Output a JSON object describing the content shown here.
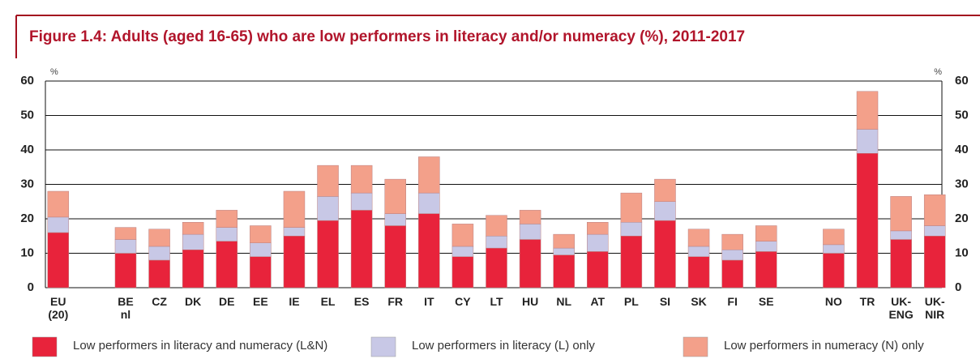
{
  "chart_data": {
    "type": "stacked_bar",
    "title": "Figure 1.4: Adults (aged 16-65) who are low performers in literacy and/or numeracy (%), 2011-2017",
    "y_label": "%",
    "y2_label": "%",
    "categories": [
      "EU (20)",
      null,
      "BE nl",
      "CZ",
      "DK",
      "DE",
      "EE",
      "IE",
      "EL",
      "ES",
      "FR",
      "IT",
      "CY",
      "LT",
      "HU",
      "NL",
      "AT",
      "PL",
      "SI",
      "SK",
      "FI",
      "SE",
      null,
      "NO",
      "TR",
      "UK- ENG",
      "UK- NIR"
    ],
    "series": [
      {
        "name": "Low performers in literacy and numeracy (L&N)",
        "color": "#e8233b",
        "values": [
          16,
          null,
          10,
          8,
          11,
          13.5,
          9,
          15,
          19.5,
          22.5,
          18,
          21.5,
          9,
          11.5,
          14,
          9.5,
          10.5,
          15,
          19.5,
          9,
          8,
          10.5,
          null,
          10,
          39,
          14,
          15
        ]
      },
      {
        "name": "Low performers in literacy (L) only",
        "color": "#c8c8e6",
        "values": [
          4.5,
          null,
          4,
          4,
          4.5,
          4,
          4,
          2.5,
          7,
          5,
          3.5,
          6,
          3,
          3.5,
          4.5,
          2,
          5,
          4,
          5.5,
          3,
          3,
          3,
          null,
          2.5,
          7,
          2.5,
          3
        ]
      },
      {
        "name": "Low performers in numeracy (N) only",
        "color": "#f3a08a",
        "values": [
          7.5,
          null,
          3.5,
          5,
          3.5,
          5,
          5,
          10.5,
          9,
          8,
          10,
          10.5,
          6.5,
          6,
          4,
          4,
          3.5,
          8.5,
          6.5,
          5,
          4.5,
          4.5,
          null,
          4.5,
          11,
          10,
          9
        ]
      }
    ],
    "ylim": [
      0,
      60
    ],
    "yticks": [
      0,
      10,
      20,
      30,
      40,
      50,
      60
    ],
    "y2lim": [
      0,
      60
    ],
    "y2ticks": [
      0,
      10,
      20,
      30,
      40,
      50,
      60
    ],
    "grid": true
  }
}
